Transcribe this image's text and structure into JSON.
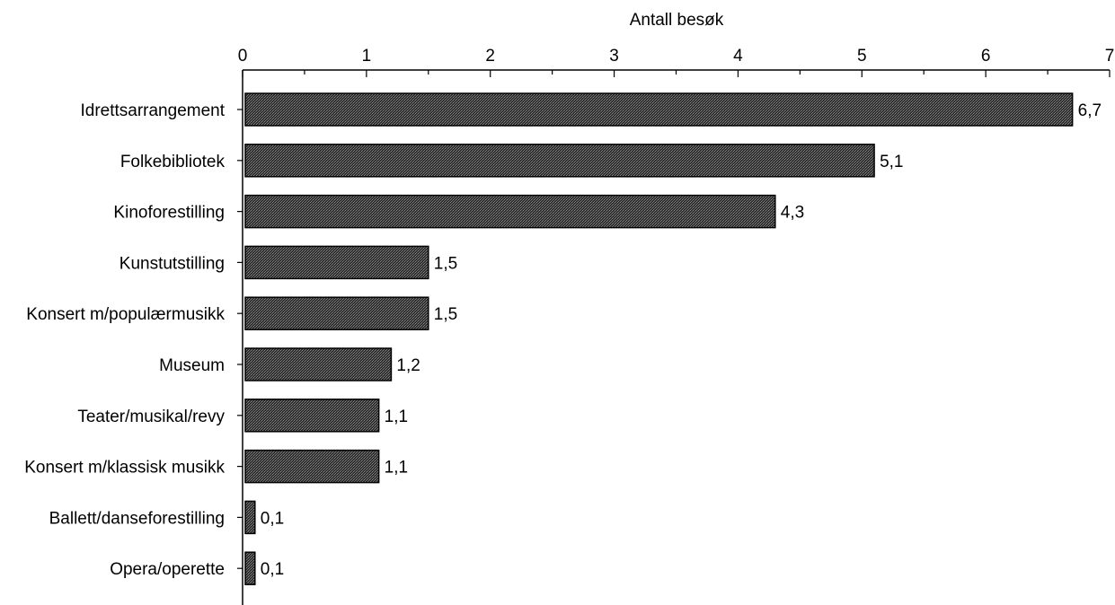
{
  "chart_data": {
    "type": "bar",
    "orientation": "horizontal",
    "xlabel": "Antall besøk",
    "xlabel_position": "top",
    "xlim": [
      0,
      7
    ],
    "xticks": [
      "0",
      "1",
      "2",
      "3",
      "4",
      "5",
      "6",
      "7"
    ],
    "categories": [
      "Idrettsarrangement",
      "Folkebibliotek",
      "Kinoforestilling",
      "Kunstutstilling",
      "Konsert m/populærmusikk",
      "Museum",
      "Teater/musikal/revy",
      "Konsert m/klassisk musikk",
      "Ballett/danseforestilling",
      "Opera/operette"
    ],
    "values": [
      6.7,
      5.1,
      4.3,
      1.5,
      1.5,
      1.2,
      1.1,
      1.1,
      0.1,
      0.1
    ],
    "value_labels": [
      "6,7",
      "5,1",
      "4,3",
      "1,5",
      "1,5",
      "1,2",
      "1,1",
      "1,1",
      "0,1",
      "0,1"
    ],
    "grid": false,
    "legend": "none",
    "bar_color": "#3a3a3a",
    "bar_edge_color": "#000000"
  }
}
